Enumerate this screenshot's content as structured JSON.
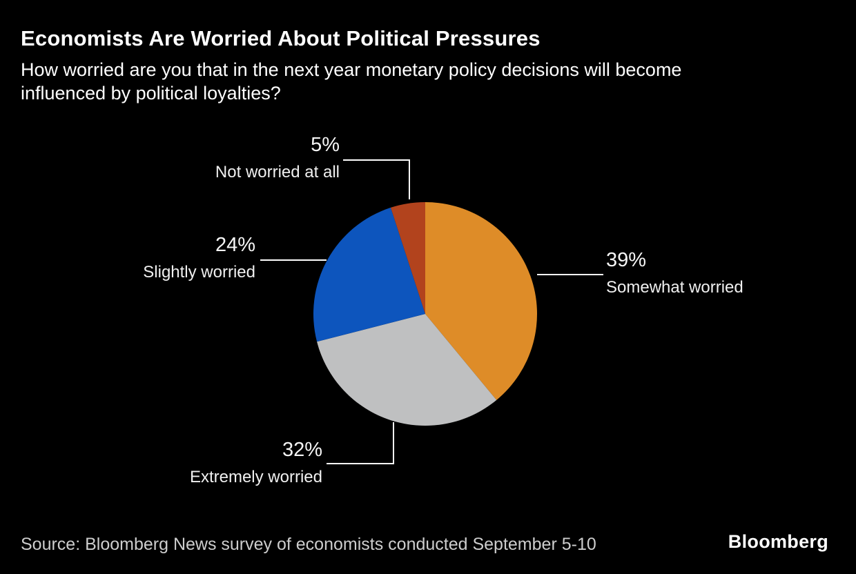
{
  "header": {
    "title": "Economists Are Worried About Political Pressures",
    "subtitle_line1": "How worried are you that in the next year monetary policy decisions will become",
    "subtitle_line2": "influenced by political loyalties?"
  },
  "chart_data": {
    "type": "pie",
    "title": "Economists Are Worried About Political Pressures",
    "question": "How worried are you that in the next year monetary policy decisions will become influenced by political loyalties?",
    "unit": "percent",
    "start_angle_deg": 0,
    "direction": "clockwise",
    "legend_position": "callouts",
    "slices": [
      {
        "label": "Somewhat worried",
        "value": 39,
        "display": "39%",
        "color": "#DE8C28"
      },
      {
        "label": "Extremely worried",
        "value": 32,
        "display": "32%",
        "color": "#BFC0C1"
      },
      {
        "label": "Slightly worried",
        "value": 24,
        "display": "24%",
        "color": "#0D55BD"
      },
      {
        "label": "Not worried at all",
        "value": 5,
        "display": "5%",
        "color": "#B2431D"
      }
    ]
  },
  "footer": {
    "source": "Source: Bloomberg News survey of economists conducted September 5-10",
    "brand": "Bloomberg"
  },
  "colors": {
    "background": "#000000",
    "title_text": "#FFFFFF",
    "subtitle_text": "#FFFFFF",
    "callout_text": "#F2F2F2",
    "callout_line": "#FFFFFF",
    "source_text": "#CDCDCD",
    "brand_text": "#FFFFFF"
  }
}
